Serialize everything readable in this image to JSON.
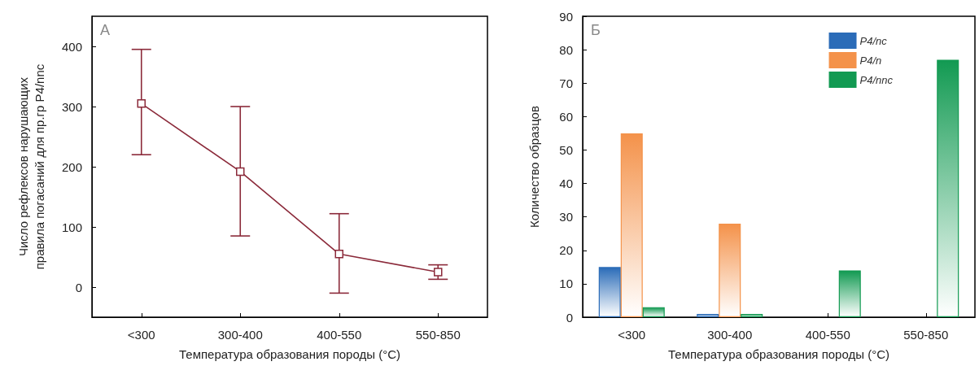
{
  "chart_data": [
    {
      "type": "line",
      "categories": [
        "<300",
        "300-400",
        "400-550",
        "550-850"
      ],
      "series": [
        {
          "color": "#8b2a3a",
          "values": [
            305,
            192,
            55,
            25
          ],
          "errors": [
            [
              220,
              395
            ],
            [
              85,
              300
            ],
            [
              -10,
              122
            ],
            [
              13,
              37
            ]
          ]
        }
      ],
      "xlabel": "Температура образования породы (°C)",
      "ylabel": "Число рефлексов нарушающих\nправила погасаний для пр.гр P4/nnc",
      "ylim": [
        -50,
        450
      ],
      "yticks": [
        0,
        100,
        200,
        300,
        400
      ],
      "marker": "square",
      "line_style": "solid",
      "grid": false,
      "legend": false,
      "annotations": [
        "А"
      ]
    },
    {
      "type": "bar",
      "categories": [
        "<300",
        "300-400",
        "400-550",
        "550-850"
      ],
      "series": [
        {
          "name": "P4/nc",
          "color": "#2b6cb8",
          "values": [
            15,
            1,
            0,
            0
          ]
        },
        {
          "name": "P4/n",
          "color": "#f4924a",
          "values": [
            55,
            28,
            0,
            0
          ]
        },
        {
          "name": "P4/nnc",
          "color": "#129a52",
          "values": [
            3,
            1,
            14,
            77
          ]
        }
      ],
      "xlabel": "Температура образования породы (°C)",
      "ylabel": "Количество образцов",
      "ylim": [
        0,
        90
      ],
      "yticks": [
        0,
        10,
        20,
        30,
        40,
        50,
        60,
        70,
        80,
        90
      ],
      "grid": false,
      "legend": "top right",
      "annotations": [
        "Б"
      ]
    }
  ]
}
